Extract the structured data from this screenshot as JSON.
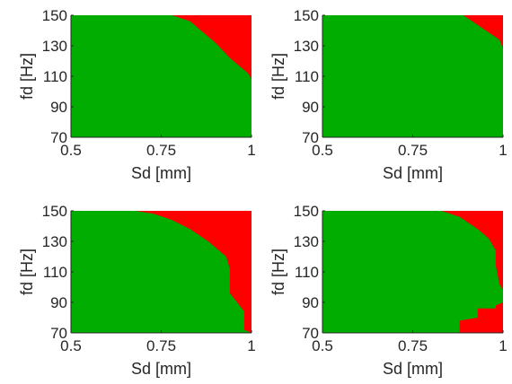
{
  "colors": {
    "feasible": "#00ad00",
    "infeasible": "#ff0000",
    "axis": "#262626",
    "background": "#ffffff"
  },
  "chart_data": [
    {
      "type": "heatmap",
      "xlabel": "Sd [mm]",
      "ylabel": "fd [Hz]",
      "xlim": [
        0.5,
        1
      ],
      "ylim": [
        70,
        150
      ],
      "xticks": [
        "0.5",
        "0.75",
        "1"
      ],
      "yticks": [
        "70",
        "90",
        "110",
        "130",
        "150"
      ],
      "boundary": [
        [
          0.78,
          150
        ],
        [
          0.83,
          146
        ],
        [
          0.85,
          142
        ],
        [
          0.9,
          132
        ],
        [
          0.94,
          122
        ],
        [
          0.99,
          112
        ],
        [
          1.0,
          108
        ]
      ]
    },
    {
      "type": "heatmap",
      "xlabel": "Sd [mm]",
      "ylabel": "fd [Hz]",
      "xlim": [
        0.5,
        1
      ],
      "ylim": [
        70,
        150
      ],
      "xticks": [
        "0.5",
        "0.75",
        "1"
      ],
      "yticks": [
        "70",
        "90",
        "110",
        "130",
        "150"
      ],
      "boundary": [
        [
          0.89,
          150
        ],
        [
          0.94,
          142
        ],
        [
          0.99,
          134
        ],
        [
          1.0,
          128
        ]
      ]
    },
    {
      "type": "heatmap",
      "xlabel": "Sd [mm]",
      "ylabel": "fd [Hz]",
      "xlim": [
        0.5,
        1
      ],
      "ylim": [
        70,
        150
      ],
      "xticks": [
        "0.5",
        "0.75",
        "1"
      ],
      "yticks": [
        "70",
        "90",
        "110",
        "130",
        "150"
      ],
      "boundary": [
        [
          0.68,
          150
        ],
        [
          0.73,
          148
        ],
        [
          0.78,
          144
        ],
        [
          0.83,
          138
        ],
        [
          0.88,
          130
        ],
        [
          0.93,
          120
        ],
        [
          0.94,
          112
        ],
        [
          0.94,
          96
        ],
        [
          0.98,
          84
        ],
        [
          0.98,
          72
        ],
        [
          1.0,
          70
        ]
      ]
    },
    {
      "type": "heatmap",
      "xlabel": "Sd [mm]",
      "ylabel": "fd [Hz]",
      "xlim": [
        0.5,
        1
      ],
      "ylim": [
        70,
        150
      ],
      "xticks": [
        "0.5",
        "0.75",
        "1"
      ],
      "yticks": [
        "70",
        "90",
        "110",
        "130",
        "150"
      ],
      "boundary": [
        [
          0.83,
          150
        ],
        [
          0.88,
          146
        ],
        [
          0.93,
          138
        ],
        [
          0.96,
          132
        ],
        [
          0.98,
          124
        ],
        [
          0.98,
          114
        ],
        [
          0.99,
          102
        ],
        [
          1.0,
          98
        ]
      ],
      "lower_boundary": [
        [
          0.88,
          70
        ],
        [
          0.88,
          78
        ],
        [
          0.93,
          80
        ],
        [
          0.93,
          86
        ],
        [
          0.98,
          86
        ],
        [
          0.98,
          88
        ],
        [
          1.0,
          90
        ]
      ]
    }
  ]
}
